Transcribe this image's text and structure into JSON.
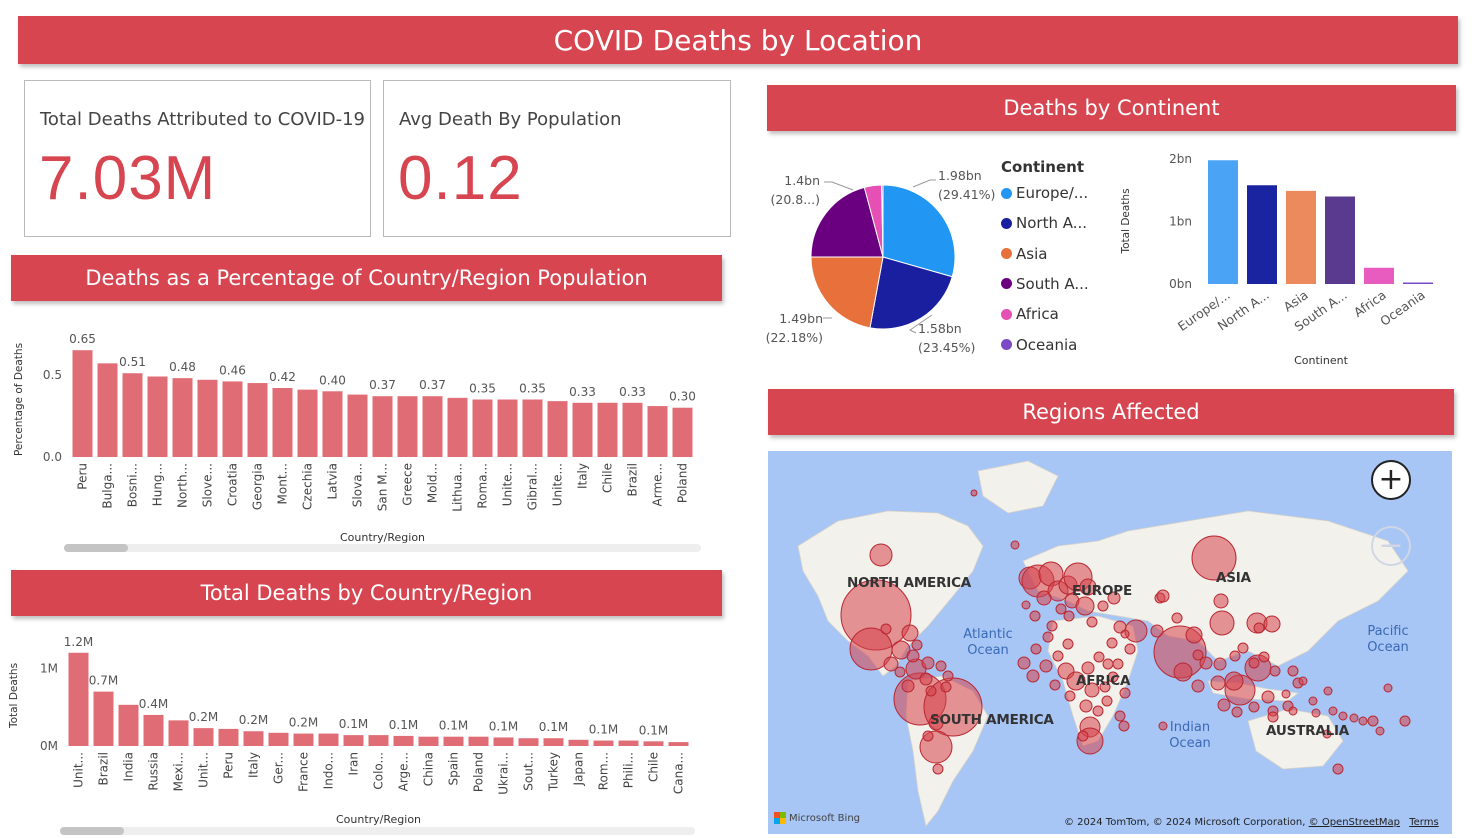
{
  "header": {
    "title": "COVID Deaths by Location"
  },
  "cards": [
    {
      "label": "Total Deaths Attributed to COVID-19",
      "value": "7.03M"
    },
    {
      "label": "Avg Death By Population",
      "value": "0.12"
    }
  ],
  "colors": {
    "banner": "#d64550",
    "bar": "#e06c75",
    "kpi": "#d64550"
  },
  "percent_chart": {
    "title": "Deaths as a Percentage of Country/Region Population",
    "ylabel": "Percentage of Deaths",
    "xlabel": "Country/Region",
    "yticks": [
      "0.5",
      "0.0"
    ]
  },
  "total_chart": {
    "title": "Total Deaths by Country/Region",
    "ylabel": "Total Deaths",
    "xlabel": "Country/Region",
    "yticks": [
      "1M",
      "0M"
    ]
  },
  "continent": {
    "title": "Deaths by Continent",
    "legend_title": "Continent",
    "legend": [
      {
        "label": "Europe/...",
        "color": "#2196f3"
      },
      {
        "label": "North A...",
        "color": "#1a1fa0"
      },
      {
        "label": "Asia",
        "color": "#e8703a"
      },
      {
        "label": "South A...",
        "color": "#6a0080"
      },
      {
        "label": "Africa",
        "color": "#e64fb4"
      },
      {
        "label": "Oceania",
        "color": "#7a49c5"
      }
    ],
    "pie_labels": [
      {
        "value": "1.98bn",
        "pct": "(29.41%)"
      },
      {
        "value": "1.58bn",
        "pct": "(23.45%)"
      },
      {
        "value": "1.49bn",
        "pct": "(22.18%)"
      },
      {
        "value": "1.4bn",
        "pct": "(20.8...)"
      }
    ],
    "bar_ylabel": "Total Deaths",
    "bar_xlabel": "Continent",
    "bar_yticks": [
      "2bn",
      "1bn",
      "0bn"
    ]
  },
  "regions": {
    "title": "Regions Affected",
    "labels": {
      "na": "NORTH AMERICA",
      "sa": "SOUTH AMERICA",
      "eu": "EUROPE",
      "af": "AFRICA",
      "as": "ASIA",
      "au": "AUSTRALIA"
    },
    "oceans": {
      "atlantic": "Atlantic Ocean",
      "indian": "Indian Ocean",
      "pacific": "Pacific Ocean"
    },
    "attribution": "© 2024 TomTom, © 2024 Microsoft Corporation,",
    "osm": "© OpenStreetMap",
    "terms": "Terms",
    "bing": "Microsoft Bing",
    "zoom_in": "+",
    "zoom_out": "−"
  },
  "chart_data": [
    {
      "type": "bar",
      "title": "Deaths as a Percentage of Country/Region Population",
      "xlabel": "Country/Region",
      "ylabel": "Percentage of Deaths",
      "ylim": [
        0,
        0.7
      ],
      "categories": [
        "Peru",
        "Bulga...",
        "Bosni...",
        "Hung...",
        "North...",
        "Slove...",
        "Croatia",
        "Georgia",
        "Mont...",
        "Czechia",
        "Latvia",
        "Slova...",
        "San M...",
        "Greece",
        "Mold...",
        "Lithua...",
        "Roma...",
        "Unite...",
        "Gibral...",
        "Unite...",
        "Italy",
        "Chile",
        "Brazil",
        "Arme...",
        "Poland"
      ],
      "values": [
        0.65,
        0.57,
        0.51,
        0.49,
        0.48,
        0.47,
        0.46,
        0.45,
        0.42,
        0.41,
        0.4,
        0.38,
        0.37,
        0.37,
        0.37,
        0.36,
        0.35,
        0.35,
        0.35,
        0.34,
        0.33,
        0.33,
        0.33,
        0.31,
        0.3
      ],
      "data_labels": [
        "0.65",
        "",
        "0.51",
        "",
        "0.48",
        "",
        "0.46",
        "",
        "0.42",
        "",
        "0.40",
        "",
        "0.37",
        "",
        "0.37",
        "",
        "0.35",
        "",
        "0.35",
        "",
        "0.33",
        "",
        "0.33",
        "",
        "0.30"
      ]
    },
    {
      "type": "bar",
      "title": "Total Deaths by Country/Region",
      "xlabel": "Country/Region",
      "ylabel": "Total Deaths",
      "ylim": [
        0,
        1.3
      ],
      "categories": [
        "Unit...",
        "Brazil",
        "India",
        "Russia",
        "Mexi...",
        "Unit...",
        "Peru",
        "Italy",
        "Ger...",
        "France",
        "Indo...",
        "Iran",
        "Colo...",
        "Arge...",
        "China",
        "Spain",
        "Poland",
        "Ukrai...",
        "Sout...",
        "Turkey",
        "Japan",
        "Rom...",
        "Phili...",
        "Chile",
        "Cana..."
      ],
      "values": [
        1.2,
        0.7,
        0.53,
        0.4,
        0.33,
        0.23,
        0.22,
        0.19,
        0.17,
        0.16,
        0.16,
        0.14,
        0.14,
        0.13,
        0.12,
        0.12,
        0.12,
        0.11,
        0.1,
        0.1,
        0.08,
        0.07,
        0.07,
        0.06,
        0.05
      ],
      "data_labels": [
        "1.2M",
        "0.7M",
        "",
        "0.4M",
        "",
        "0.2M",
        "",
        "0.2M",
        "",
        "0.2M",
        "",
        "0.1M",
        "",
        "0.1M",
        "",
        "0.1M",
        "",
        "0.1M",
        "",
        "0.1M",
        "",
        "0.1M",
        "",
        "0.1M",
        ""
      ]
    },
    {
      "type": "pie",
      "title": "Deaths by Continent",
      "legend_title": "Continent",
      "categories": [
        "Europe/...",
        "North A...",
        "Asia",
        "South A...",
        "Africa",
        "Oceania"
      ],
      "values": [
        1.98,
        1.58,
        1.49,
        1.4,
        0.26,
        0.02
      ],
      "unit": "bn",
      "legend_position": "right"
    },
    {
      "type": "bar",
      "xlabel": "Continent",
      "ylabel": "Total Deaths",
      "ylim": [
        0,
        2
      ],
      "categories": [
        "Europe/...",
        "North A...",
        "Asia",
        "South A...",
        "Africa",
        "Oceania"
      ],
      "values": [
        1.98,
        1.58,
        1.49,
        1.4,
        0.26,
        0.02
      ]
    }
  ]
}
